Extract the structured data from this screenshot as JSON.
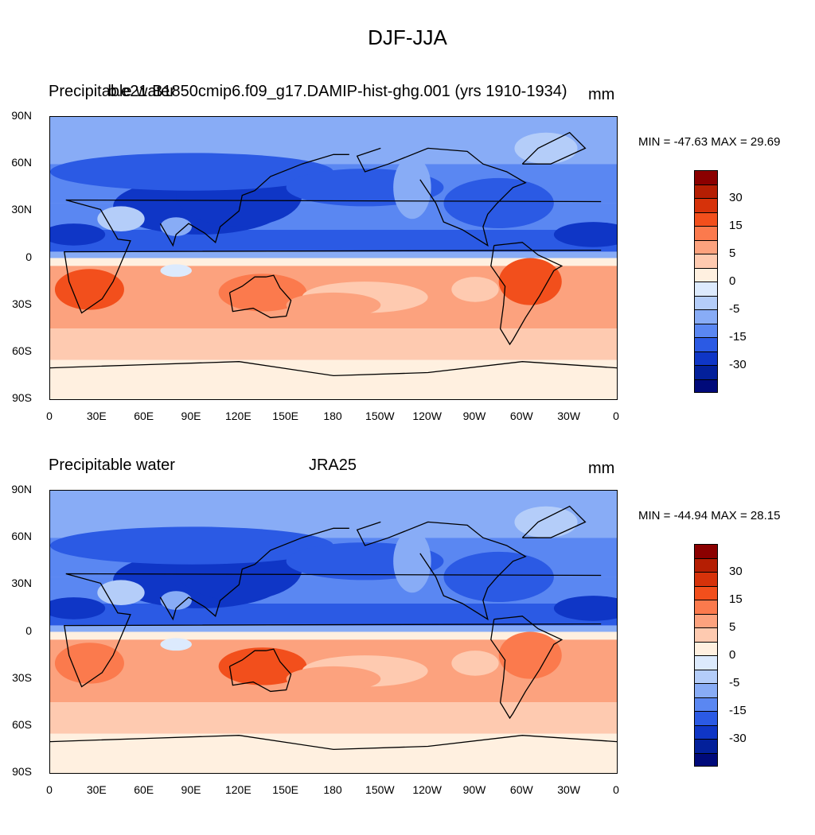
{
  "figure": {
    "title": "DJF-JJA",
    "colors": {
      "levels": [
        {
          "label": "",
          "color": "#8b0000"
        },
        {
          "label": "30",
          "color": "#b51e03"
        },
        {
          "label": "",
          "color": "#d6320a"
        },
        {
          "label": "15",
          "color": "#f24f1c"
        },
        {
          "label": "",
          "color": "#fb7a4d"
        },
        {
          "label": "5",
          "color": "#fca27e"
        },
        {
          "label": "",
          "color": "#fecab0"
        },
        {
          "label": "0",
          "color": "#fff0e0"
        },
        {
          "label": "",
          "color": "#dceafd"
        },
        {
          "label": "-5",
          "color": "#b4cdf9"
        },
        {
          "label": "",
          "color": "#88acf6"
        },
        {
          "label": "-15",
          "color": "#5a87f2"
        },
        {
          "label": "",
          "color": "#2b5ae4"
        },
        {
          "label": "-30",
          "color": "#0f36c6"
        },
        {
          "label": "",
          "color": "#03209a"
        },
        {
          "label": "",
          "color": "#000a7a"
        }
      ]
    }
  },
  "axes": {
    "lat_labels": [
      "90N",
      "60N",
      "30N",
      "0",
      "30S",
      "60S",
      "90S"
    ],
    "lon_labels": [
      "0",
      "30E",
      "60E",
      "90E",
      "120E",
      "150E",
      "180",
      "150W",
      "120W",
      "90W",
      "60W",
      "30W",
      "0"
    ]
  },
  "panels": [
    {
      "left_label": "Precipitable water",
      "center_label": "b.e21.B1850cmip6.f09_g17.DAMIP-hist-ghg.001 (yrs 1910-1934)",
      "right_label": "mm",
      "stats": "MIN = -47.63 MAX =  29.69"
    },
    {
      "left_label": "Precipitable water",
      "center_label": "JRA25",
      "right_label": "mm",
      "stats": "MIN = -44.94 MAX =  28.15"
    }
  ]
}
